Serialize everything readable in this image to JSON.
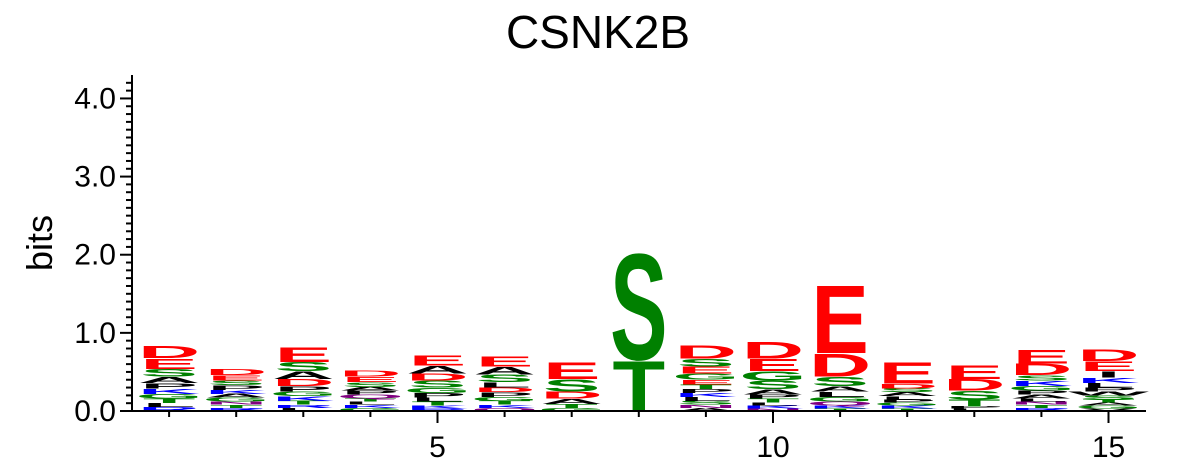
{
  "chart_data": {
    "type": "sequence-logo",
    "title": "CSNK2B",
    "ylabel": "bits",
    "ylim": [
      0,
      4.3
    ],
    "yticks": [
      "0.0",
      "1.0",
      "2.0",
      "3.0",
      "4.0"
    ],
    "xticks": [
      "5",
      "10",
      "15"
    ],
    "xtick_positions": [
      5,
      10,
      15
    ],
    "colors": {
      "acidic": "#ff0000",
      "polar": "#008000",
      "hydrophobic": "#000000",
      "basic": "#0000ff",
      "amide": "#800080"
    },
    "letter_colors": {
      "D": "#ff0000",
      "E": "#ff0000",
      "S": "#008000",
      "T": "#008000",
      "G": "#008000",
      "Y": "#008000",
      "C": "#008000",
      "A": "#000000",
      "L": "#000000",
      "I": "#000000",
      "V": "#000000",
      "P": "#000000",
      "M": "#000000",
      "F": "#000000",
      "W": "#000000",
      "K": "#0000ff",
      "R": "#0000ff",
      "H": "#0000ff",
      "N": "#800080",
      "Q": "#800080"
    },
    "positions": [
      {
        "pos": 1,
        "letters": [
          {
            "l": "D",
            "h": 0.16
          },
          {
            "l": "E",
            "h": 0.14
          },
          {
            "l": "S",
            "h": 0.1
          },
          {
            "l": "A",
            "h": 0.08
          },
          {
            "l": "K",
            "h": 0.07
          },
          {
            "l": "P",
            "h": 0.07
          },
          {
            "l": "T",
            "h": 0.06
          },
          {
            "l": "G",
            "h": 0.06
          },
          {
            "l": "R",
            "h": 0.05
          },
          {
            "l": "L",
            "h": 0.05
          }
        ]
      },
      {
        "pos": 2,
        "letters": [
          {
            "l": "D",
            "h": 0.08
          },
          {
            "l": "E",
            "h": 0.07
          },
          {
            "l": "P",
            "h": 0.06
          },
          {
            "l": "S",
            "h": 0.06
          },
          {
            "l": "G",
            "h": 0.05
          },
          {
            "l": "A",
            "h": 0.05
          },
          {
            "l": "K",
            "h": 0.05
          },
          {
            "l": "R",
            "h": 0.04
          },
          {
            "l": "T",
            "h": 0.04
          },
          {
            "l": "N",
            "h": 0.04
          }
        ]
      },
      {
        "pos": 3,
        "letters": [
          {
            "l": "E",
            "h": 0.2
          },
          {
            "l": "S",
            "h": 0.12
          },
          {
            "l": "A",
            "h": 0.1
          },
          {
            "l": "D",
            "h": 0.09
          },
          {
            "l": "P",
            "h": 0.07
          },
          {
            "l": "K",
            "h": 0.06
          },
          {
            "l": "G",
            "h": 0.06
          },
          {
            "l": "T",
            "h": 0.05
          },
          {
            "l": "L",
            "h": 0.04
          },
          {
            "l": "R",
            "h": 0.04
          }
        ]
      },
      {
        "pos": 4,
        "letters": [
          {
            "l": "D",
            "h": 0.08
          },
          {
            "l": "E",
            "h": 0.07
          },
          {
            "l": "S",
            "h": 0.06
          },
          {
            "l": "Q",
            "h": 0.05
          },
          {
            "l": "P",
            "h": 0.05
          },
          {
            "l": "A",
            "h": 0.05
          },
          {
            "l": "G",
            "h": 0.04
          },
          {
            "l": "K",
            "h": 0.04
          },
          {
            "l": "L",
            "h": 0.04
          },
          {
            "l": "T",
            "h": 0.04
          }
        ]
      },
      {
        "pos": 5,
        "letters": [
          {
            "l": "E",
            "h": 0.14
          },
          {
            "l": "A",
            "h": 0.1
          },
          {
            "l": "S",
            "h": 0.09
          },
          {
            "l": "D",
            "h": 0.09
          },
          {
            "l": "G",
            "h": 0.07
          },
          {
            "l": "P",
            "h": 0.06
          },
          {
            "l": "T",
            "h": 0.05
          },
          {
            "l": "L",
            "h": 0.05
          },
          {
            "l": "K",
            "h": 0.04
          },
          {
            "l": "R",
            "h": 0.03
          }
        ]
      },
      {
        "pos": 6,
        "letters": [
          {
            "l": "E",
            "h": 0.14
          },
          {
            "l": "S",
            "h": 0.1
          },
          {
            "l": "A",
            "h": 0.1
          },
          {
            "l": "L",
            "h": 0.07
          },
          {
            "l": "P",
            "h": 0.06
          },
          {
            "l": "D",
            "h": 0.06
          },
          {
            "l": "T",
            "h": 0.05
          },
          {
            "l": "G",
            "h": 0.05
          },
          {
            "l": "Q",
            "h": 0.04
          },
          {
            "l": "K",
            "h": 0.04
          }
        ]
      },
      {
        "pos": 7,
        "letters": [
          {
            "l": "E",
            "h": 0.22
          },
          {
            "l": "S",
            "h": 0.16
          },
          {
            "l": "D",
            "h": 0.09
          },
          {
            "l": "A",
            "h": 0.07
          },
          {
            "l": "T",
            "h": 0.05
          },
          {
            "l": "G",
            "h": 0.04
          }
        ]
      },
      {
        "pos": 8,
        "letters": [
          {
            "l": "S",
            "h": 1.4
          },
          {
            "l": "T",
            "h": 0.66
          }
        ]
      },
      {
        "pos": 9,
        "letters": [
          {
            "l": "D",
            "h": 0.17
          },
          {
            "l": "S",
            "h": 0.1
          },
          {
            "l": "E",
            "h": 0.09
          },
          {
            "l": "G",
            "h": 0.08
          },
          {
            "l": "T",
            "h": 0.06
          },
          {
            "l": "E",
            "h": 0.06
          },
          {
            "l": "S",
            "h": 0.05
          },
          {
            "l": "L",
            "h": 0.05
          },
          {
            "l": "K",
            "h": 0.05
          },
          {
            "l": "P",
            "h": 0.05
          },
          {
            "l": "A",
            "h": 0.04
          },
          {
            "l": "N",
            "h": 0.04
          }
        ]
      },
      {
        "pos": 10,
        "letters": [
          {
            "l": "D",
            "h": 0.22
          },
          {
            "l": "E",
            "h": 0.16
          },
          {
            "l": "G",
            "h": 0.12
          },
          {
            "l": "S",
            "h": 0.11
          },
          {
            "l": "A",
            "h": 0.07
          },
          {
            "l": "T",
            "h": 0.05
          },
          {
            "l": "P",
            "h": 0.05
          },
          {
            "l": "K",
            "h": 0.04
          },
          {
            "l": "L",
            "h": 0.04
          },
          {
            "l": "N",
            "h": 0.03
          }
        ]
      },
      {
        "pos": 11,
        "letters": [
          {
            "l": "E",
            "h": 0.9
          },
          {
            "l": "D",
            "h": 0.3
          },
          {
            "l": "S",
            "h": 0.12
          },
          {
            "l": "L",
            "h": 0.07
          },
          {
            "l": "A",
            "h": 0.07
          },
          {
            "l": "G",
            "h": 0.06
          },
          {
            "l": "Q",
            "h": 0.05
          },
          {
            "l": "K",
            "h": 0.04
          },
          {
            "l": "T",
            "h": 0.03
          }
        ]
      },
      {
        "pos": 12,
        "letters": [
          {
            "l": "E",
            "h": 0.28
          },
          {
            "l": "D",
            "h": 0.06
          },
          {
            "l": "A",
            "h": 0.05
          },
          {
            "l": "S",
            "h": 0.05
          },
          {
            "l": "K",
            "h": 0.04
          },
          {
            "l": "G",
            "h": 0.04
          },
          {
            "l": "P",
            "h": 0.04
          },
          {
            "l": "L",
            "h": 0.04
          },
          {
            "l": "T",
            "h": 0.03
          }
        ]
      },
      {
        "pos": 13,
        "letters": [
          {
            "l": "E",
            "h": 0.18
          },
          {
            "l": "S",
            "h": 0.11
          },
          {
            "l": "D",
            "h": 0.15
          },
          {
            "l": "T",
            "h": 0.09
          },
          {
            "l": "L",
            "h": 0.03
          },
          {
            "l": "P",
            "h": 0.03
          }
        ]
      },
      {
        "pos": 14,
        "letters": [
          {
            "l": "E",
            "h": 0.18
          },
          {
            "l": "D",
            "h": 0.15
          },
          {
            "l": "K",
            "h": 0.07
          },
          {
            "l": "S",
            "h": 0.07
          },
          {
            "l": "G",
            "h": 0.06
          },
          {
            "l": "A",
            "h": 0.05
          },
          {
            "l": "P",
            "h": 0.05
          },
          {
            "l": "R",
            "h": 0.04
          },
          {
            "l": "T",
            "h": 0.04
          },
          {
            "l": "N",
            "h": 0.04
          },
          {
            "l": "L",
            "h": 0.04
          }
        ]
      },
      {
        "pos": 15,
        "letters": [
          {
            "l": "D",
            "h": 0.15
          },
          {
            "l": "E",
            "h": 0.13
          },
          {
            "l": "I",
            "h": 0.08
          },
          {
            "l": "K",
            "h": 0.07
          },
          {
            "l": "L",
            "h": 0.06
          },
          {
            "l": "S",
            "h": 0.05
          },
          {
            "l": "W",
            "h": 0.05
          },
          {
            "l": "P",
            "h": 0.05
          },
          {
            "l": "G",
            "h": 0.04
          },
          {
            "l": "A",
            "h": 0.04
          },
          {
            "l": "T",
            "h": 0.04
          },
          {
            "l": "V",
            "h": 0.03
          }
        ]
      }
    ]
  }
}
